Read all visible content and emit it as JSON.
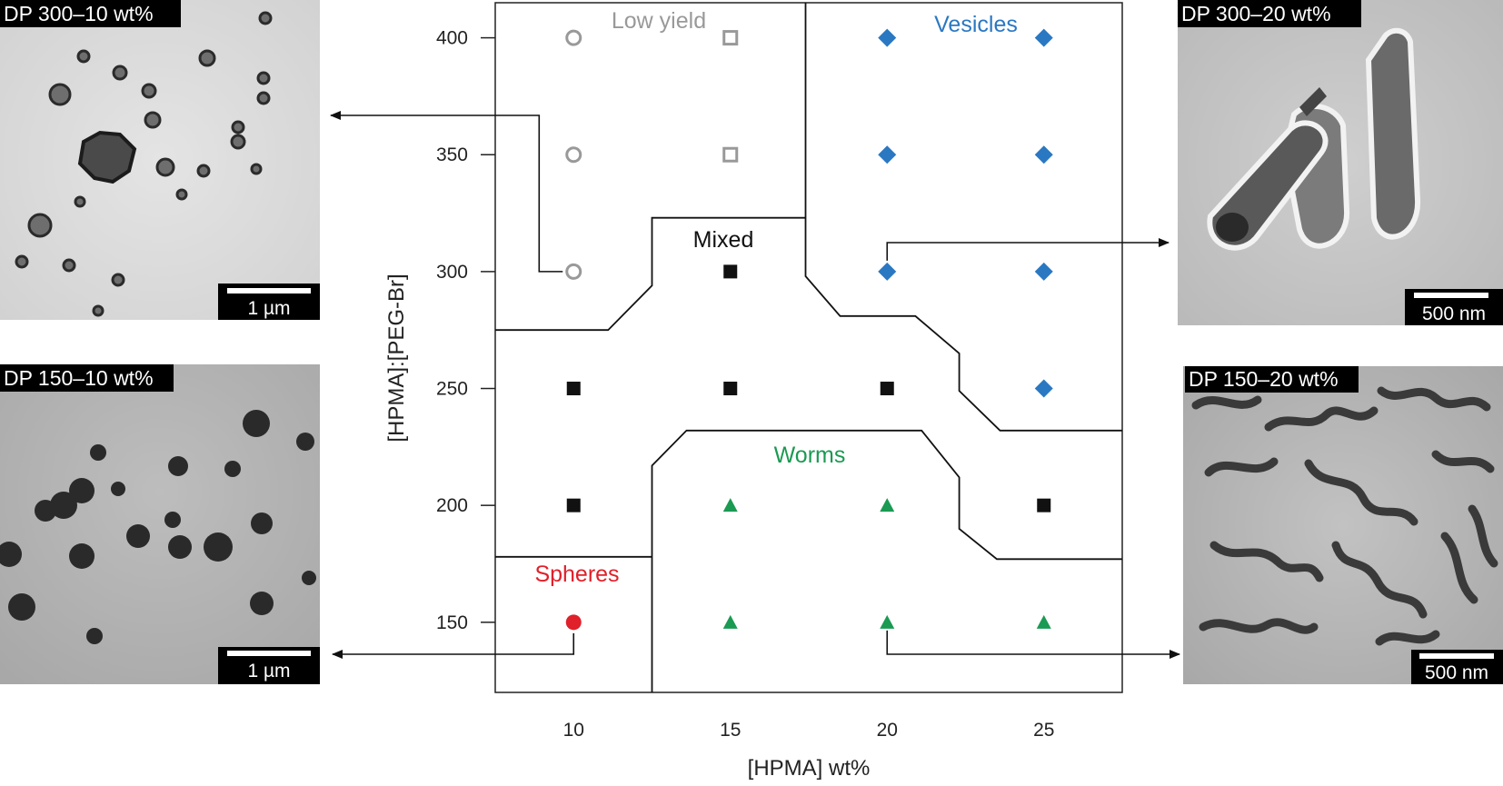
{
  "chart_data": {
    "type": "scatter",
    "title": "",
    "xlabel": "[HPMA] wt%",
    "ylabel": "[HPMA]:[PEG-Br]",
    "x_ticks": [
      10,
      15,
      20,
      25
    ],
    "y_ticks": [
      150,
      200,
      250,
      300,
      350,
      400
    ],
    "xlim": [
      7.5,
      27.5
    ],
    "ylim": [
      120,
      415
    ],
    "grid": false,
    "legend": "none",
    "regions": [
      {
        "name": "Low yield",
        "color": "#999999",
        "marker": "open"
      },
      {
        "name": "Vesicles",
        "color": "#2a78c2",
        "marker": "diamond"
      },
      {
        "name": "Mixed",
        "color": "#111111",
        "marker": "square"
      },
      {
        "name": "Worms",
        "color": "#1a9a52",
        "marker": "triangle"
      },
      {
        "name": "Spheres",
        "color": "#e0202a",
        "marker": "circle"
      }
    ],
    "points": [
      {
        "x": 10,
        "y": 400,
        "phase": "Low yield",
        "marker": "open-circle"
      },
      {
        "x": 15,
        "y": 400,
        "phase": "Low yield",
        "marker": "open-square"
      },
      {
        "x": 20,
        "y": 400,
        "phase": "Vesicles",
        "marker": "diamond"
      },
      {
        "x": 25,
        "y": 400,
        "phase": "Vesicles",
        "marker": "diamond"
      },
      {
        "x": 10,
        "y": 350,
        "phase": "Low yield",
        "marker": "open-circle"
      },
      {
        "x": 15,
        "y": 350,
        "phase": "Low yield",
        "marker": "open-square"
      },
      {
        "x": 20,
        "y": 350,
        "phase": "Vesicles",
        "marker": "diamond"
      },
      {
        "x": 25,
        "y": 350,
        "phase": "Vesicles",
        "marker": "diamond"
      },
      {
        "x": 10,
        "y": 300,
        "phase": "Low yield",
        "marker": "open-circle"
      },
      {
        "x": 15,
        "y": 300,
        "phase": "Mixed",
        "marker": "square"
      },
      {
        "x": 20,
        "y": 300,
        "phase": "Vesicles",
        "marker": "diamond"
      },
      {
        "x": 25,
        "y": 300,
        "phase": "Vesicles",
        "marker": "diamond"
      },
      {
        "x": 10,
        "y": 250,
        "phase": "Mixed",
        "marker": "square"
      },
      {
        "x": 15,
        "y": 250,
        "phase": "Mixed",
        "marker": "square"
      },
      {
        "x": 20,
        "y": 250,
        "phase": "Mixed",
        "marker": "square"
      },
      {
        "x": 25,
        "y": 250,
        "phase": "Vesicles",
        "marker": "diamond"
      },
      {
        "x": 10,
        "y": 200,
        "phase": "Mixed",
        "marker": "square"
      },
      {
        "x": 15,
        "y": 200,
        "phase": "Worms",
        "marker": "triangle"
      },
      {
        "x": 20,
        "y": 200,
        "phase": "Worms",
        "marker": "triangle"
      },
      {
        "x": 25,
        "y": 200,
        "phase": "Mixed",
        "marker": "square"
      },
      {
        "x": 10,
        "y": 150,
        "phase": "Spheres",
        "marker": "filled-circle"
      },
      {
        "x": 15,
        "y": 150,
        "phase": "Worms",
        "marker": "triangle"
      },
      {
        "x": 20,
        "y": 150,
        "phase": "Worms",
        "marker": "triangle"
      },
      {
        "x": 25,
        "y": 150,
        "phase": "Worms",
        "marker": "triangle"
      }
    ],
    "boundaries": [
      {
        "name": "lowyield-vesicles",
        "points": [
          [
            17.4,
            415
          ],
          [
            17.4,
            298
          ],
          [
            18.5,
            281
          ],
          [
            20.9,
            281
          ],
          [
            22.3,
            265
          ],
          [
            22.3,
            249
          ],
          [
            23.6,
            232
          ],
          [
            27.5,
            232
          ]
        ]
      },
      {
        "name": "mixed-upper",
        "points": [
          [
            7.5,
            275
          ],
          [
            11.1,
            275
          ],
          [
            12.5,
            294
          ],
          [
            12.5,
            323
          ],
          [
            17.4,
            323
          ]
        ]
      },
      {
        "name": "worms-upper",
        "points": [
          [
            12.5,
            120
          ],
          [
            12.5,
            217
          ],
          [
            13.6,
            232
          ],
          [
            21.1,
            232
          ],
          [
            22.3,
            212
          ],
          [
            22.3,
            190
          ],
          [
            23.5,
            177
          ],
          [
            27.5,
            177
          ]
        ]
      },
      {
        "name": "spheres-upper",
        "points": [
          [
            7.5,
            178
          ],
          [
            12.5,
            178
          ]
        ]
      }
    ]
  },
  "micrographs": [
    {
      "id": "tl",
      "label": "DP 300–10 wt%",
      "scale": "1 µm",
      "target": {
        "x": 10,
        "y": 300
      }
    },
    {
      "id": "bl",
      "label": "DP 150–10 wt%",
      "scale": "1 µm",
      "target": {
        "x": 10,
        "y": 150
      }
    },
    {
      "id": "tr",
      "label": "DP 300–20 wt%",
      "scale": "500 nm",
      "target": {
        "x": 20,
        "y": 300
      }
    },
    {
      "id": "br",
      "label": "DP 150–20 wt%",
      "scale": "500 nm",
      "target": {
        "x": 20,
        "y": 150
      }
    }
  ]
}
